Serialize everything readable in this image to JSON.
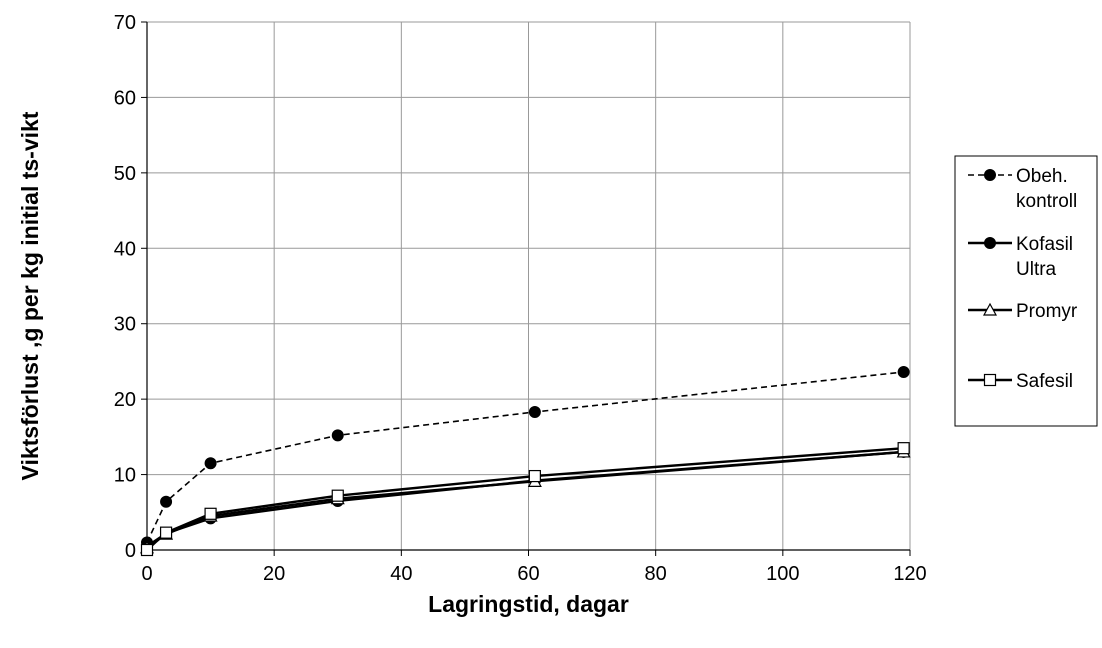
{
  "chart_data": {
    "type": "line",
    "title": "",
    "xlabel": "Lagringstid, dagar",
    "ylabel": "Viktsförlust ,g per kg initial ts-vikt",
    "xlim": [
      0,
      120
    ],
    "ylim": [
      0,
      70
    ],
    "x_ticks": [
      0,
      20,
      40,
      60,
      80,
      100,
      120
    ],
    "y_ticks": [
      0,
      10,
      20,
      30,
      40,
      50,
      60,
      70
    ],
    "grid": true,
    "legend_position": "right",
    "series": [
      {
        "name": "Obeh. kontroll",
        "legend_lines": [
          "Obeh.",
          "kontroll"
        ],
        "marker": "filled-circle",
        "line_style": "dashed",
        "x": [
          0,
          3,
          10,
          30,
          61,
          119
        ],
        "y": [
          1.0,
          6.4,
          11.5,
          15.2,
          18.3,
          23.6
        ]
      },
      {
        "name": "Kofasil Ultra",
        "legend_lines": [
          "Kofasil",
          "Ultra"
        ],
        "marker": "filled-circle",
        "line_style": "solid",
        "x": [
          0,
          3,
          10,
          30,
          61,
          119
        ],
        "y": [
          0.5,
          2.2,
          4.2,
          6.5,
          9.2,
          13.0
        ]
      },
      {
        "name": "Promyr",
        "legend_lines": [
          "Promyr"
        ],
        "marker": "open-triangle",
        "line_style": "solid",
        "x": [
          0,
          3,
          10,
          30,
          61,
          119
        ],
        "y": [
          0.3,
          2.1,
          4.5,
          6.8,
          9.1,
          13.0
        ]
      },
      {
        "name": "Safesil",
        "legend_lines": [
          "Safesil"
        ],
        "marker": "open-square",
        "line_style": "solid",
        "x": [
          0,
          3,
          10,
          30,
          61,
          119
        ],
        "y": [
          0.0,
          2.3,
          4.8,
          7.2,
          9.8,
          13.5
        ]
      }
    ]
  }
}
